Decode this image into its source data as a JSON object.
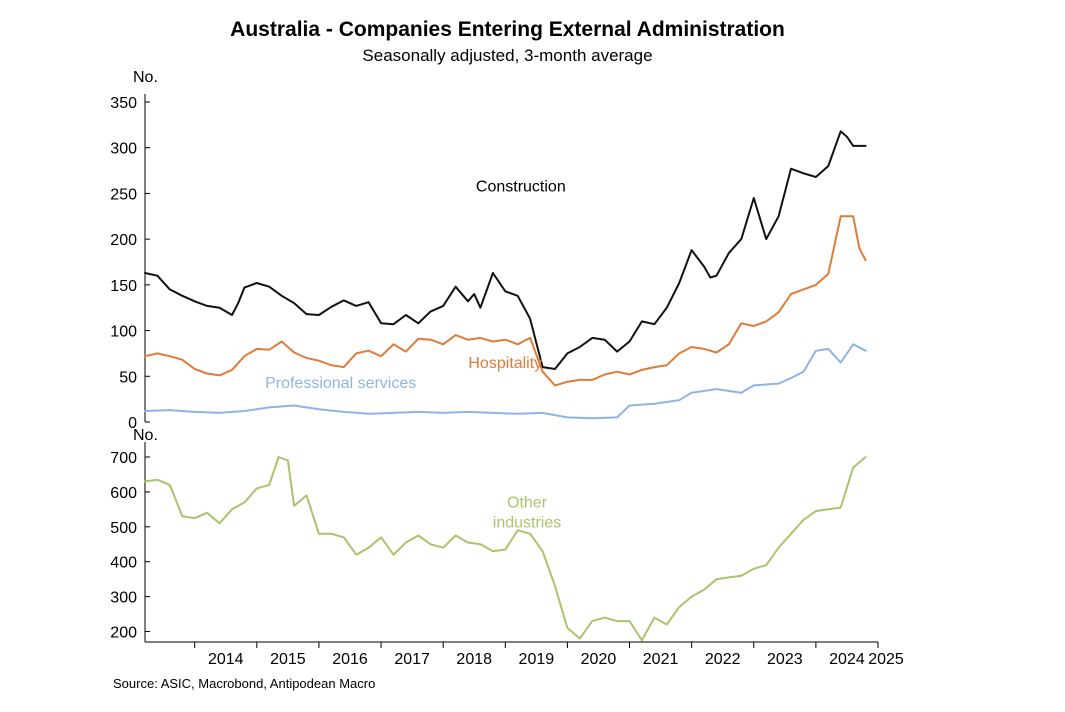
{
  "title": "Australia - Companies Entering External Administration",
  "subtitle": "Seasonally adjusted, 3-month average",
  "source": "Source: ASIC, Macrobond, Antipodean Macro",
  "chart_data": [
    {
      "type": "line",
      "ylabel": "No.",
      "ylim": [
        0,
        350
      ],
      "yticks": [
        0,
        50,
        100,
        150,
        200,
        250,
        300,
        350
      ],
      "xlim": [
        2013.2,
        2025.0
      ],
      "series": [
        {
          "name": "Construction",
          "label": "Construction",
          "color": "#111111",
          "label_color": "#000000",
          "x": [
            2013.2,
            2013.4,
            2013.6,
            2013.8,
            2014.0,
            2014.2,
            2014.4,
            2014.6,
            2014.7,
            2014.8,
            2015.0,
            2015.2,
            2015.4,
            2015.6,
            2015.8,
            2016.0,
            2016.2,
            2016.4,
            2016.6,
            2016.8,
            2017.0,
            2017.2,
            2017.4,
            2017.6,
            2017.8,
            2018.0,
            2018.2,
            2018.4,
            2018.5,
            2018.6,
            2018.8,
            2019.0,
            2019.2,
            2019.4,
            2019.6,
            2019.8,
            2020.0,
            2020.2,
            2020.4,
            2020.6,
            2020.8,
            2021.0,
            2021.2,
            2021.4,
            2021.6,
            2021.8,
            2022.0,
            2022.2,
            2022.3,
            2022.4,
            2022.6,
            2022.8,
            2023.0,
            2023.2,
            2023.4,
            2023.6,
            2023.8,
            2024.0,
            2024.2,
            2024.4,
            2024.5,
            2024.6,
            2024.8
          ],
          "values": [
            163,
            160,
            145,
            138,
            132,
            127,
            125,
            117,
            130,
            147,
            152,
            148,
            138,
            130,
            118,
            117,
            126,
            133,
            127,
            131,
            108,
            107,
            117,
            108,
            121,
            127,
            148,
            132,
            140,
            125,
            163,
            143,
            138,
            113,
            60,
            58,
            75,
            82,
            92,
            90,
            77,
            88,
            110,
            107,
            125,
            152,
            188,
            170,
            158,
            160,
            185,
            200,
            245,
            200,
            225,
            277,
            272,
            268,
            280,
            318,
            312,
            302,
            302
          ],
          "label_pos": [
            2019.25,
            252
          ]
        },
        {
          "name": "Hospitality",
          "label": "Hospitality",
          "color": "#e07b39",
          "label_color": "#e07b39",
          "x": [
            2013.2,
            2013.4,
            2013.6,
            2013.8,
            2014.0,
            2014.2,
            2014.4,
            2014.6,
            2014.8,
            2015.0,
            2015.2,
            2015.4,
            2015.6,
            2015.8,
            2016.0,
            2016.2,
            2016.4,
            2016.6,
            2016.8,
            2017.0,
            2017.2,
            2017.4,
            2017.6,
            2017.8,
            2018.0,
            2018.2,
            2018.4,
            2018.6,
            2018.8,
            2019.0,
            2019.2,
            2019.4,
            2019.6,
            2019.8,
            2020.0,
            2020.2,
            2020.4,
            2020.6,
            2020.8,
            2021.0,
            2021.2,
            2021.4,
            2021.6,
            2021.8,
            2022.0,
            2022.2,
            2022.4,
            2022.6,
            2022.8,
            2023.0,
            2023.2,
            2023.4,
            2023.6,
            2023.8,
            2024.0,
            2024.2,
            2024.4,
            2024.6,
            2024.7,
            2024.8
          ],
          "values": [
            72,
            75,
            72,
            68,
            58,
            53,
            51,
            57,
            72,
            80,
            79,
            88,
            76,
            70,
            67,
            62,
            60,
            75,
            78,
            72,
            85,
            77,
            91,
            90,
            85,
            95,
            90,
            92,
            88,
            90,
            85,
            92,
            55,
            40,
            44,
            46,
            46,
            52,
            55,
            52,
            57,
            60,
            62,
            75,
            82,
            80,
            76,
            85,
            108,
            105,
            110,
            120,
            140,
            145,
            150,
            162,
            225,
            225,
            190,
            177
          ],
          "label_pos": [
            2019.0,
            59
          ]
        },
        {
          "name": "Professional services",
          "label": "Professional services",
          "color": "#8fb4e3",
          "label_color": "#8fb4e3",
          "x": [
            2013.2,
            2013.6,
            2014.0,
            2014.4,
            2014.8,
            2015.2,
            2015.6,
            2016.0,
            2016.4,
            2016.8,
            2017.2,
            2017.6,
            2018.0,
            2018.4,
            2018.8,
            2019.2,
            2019.6,
            2020.0,
            2020.4,
            2020.8,
            2021.0,
            2021.4,
            2021.8,
            2022.0,
            2022.4,
            2022.8,
            2023.0,
            2023.4,
            2023.6,
            2023.8,
            2024.0,
            2024.2,
            2024.4,
            2024.6,
            2024.8
          ],
          "values": [
            12,
            13,
            11,
            10,
            12,
            16,
            18,
            14,
            11,
            9,
            10,
            11,
            10,
            11,
            10,
            9,
            10,
            5,
            4,
            5,
            18,
            20,
            24,
            32,
            36,
            32,
            40,
            42,
            48,
            55,
            78,
            80,
            65,
            85,
            78
          ],
          "label_pos": [
            2016.35,
            37
          ]
        }
      ]
    },
    {
      "type": "line",
      "ylabel": "No.",
      "ylim": [
        170,
        720
      ],
      "yticks": [
        200,
        300,
        400,
        500,
        600,
        700
      ],
      "xlim": [
        2013.2,
        2025.0
      ],
      "xticks": [
        "2014",
        "2015",
        "2016",
        "2017",
        "2018",
        "2019",
        "2020",
        "2021",
        "2022",
        "2023",
        "2024",
        "2025"
      ],
      "series": [
        {
          "name": "Other industries",
          "label_lines": [
            "Other",
            "industries"
          ],
          "color": "#a9c46b",
          "label_color": "#a9c46b",
          "x": [
            2013.2,
            2013.4,
            2013.6,
            2013.8,
            2014.0,
            2014.2,
            2014.4,
            2014.6,
            2014.8,
            2015.0,
            2015.2,
            2015.35,
            2015.5,
            2015.6,
            2015.8,
            2016.0,
            2016.2,
            2016.4,
            2016.6,
            2016.8,
            2017.0,
            2017.2,
            2017.4,
            2017.6,
            2017.8,
            2018.0,
            2018.2,
            2018.4,
            2018.6,
            2018.8,
            2019.0,
            2019.2,
            2019.4,
            2019.6,
            2019.8,
            2020.0,
            2020.2,
            2020.4,
            2020.6,
            2020.8,
            2021.0,
            2021.2,
            2021.4,
            2021.6,
            2021.8,
            2022.0,
            2022.2,
            2022.4,
            2022.6,
            2022.8,
            2023.0,
            2023.2,
            2023.4,
            2023.6,
            2023.8,
            2024.0,
            2024.2,
            2024.4,
            2024.6,
            2024.8
          ],
          "values": [
            630,
            635,
            620,
            530,
            525,
            540,
            510,
            550,
            570,
            610,
            620,
            700,
            690,
            560,
            590,
            480,
            480,
            470,
            420,
            440,
            470,
            420,
            455,
            475,
            450,
            440,
            475,
            455,
            450,
            430,
            435,
            490,
            480,
            430,
            330,
            210,
            180,
            230,
            240,
            230,
            230,
            175,
            240,
            220,
            270,
            300,
            320,
            350,
            355,
            360,
            380,
            390,
            440,
            480,
            520,
            545,
            550,
            555,
            670,
            700
          ],
          "label_pos": [
            2019.35,
            555
          ]
        }
      ]
    }
  ]
}
